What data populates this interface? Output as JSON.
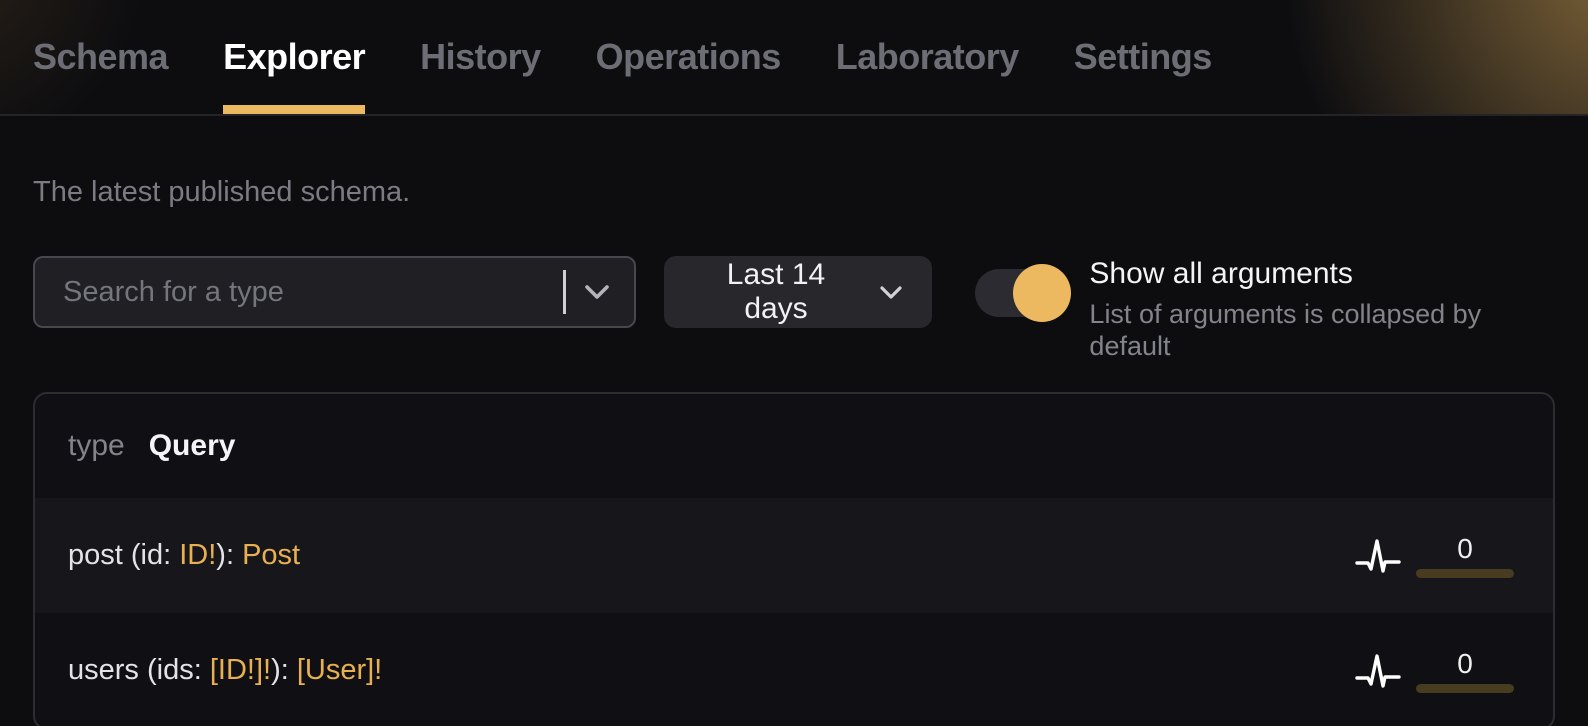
{
  "nav": {
    "active": "Explorer",
    "tabs": [
      {
        "label": "Schema"
      },
      {
        "label": "Explorer"
      },
      {
        "label": "History"
      },
      {
        "label": "Operations"
      },
      {
        "label": "Laboratory"
      },
      {
        "label": "Settings"
      }
    ]
  },
  "page": {
    "description": "The latest published schema."
  },
  "controls": {
    "search": {
      "placeholder": "Search for a type",
      "value": ""
    },
    "period": {
      "label": "Last 14 days"
    },
    "arguments_toggle": {
      "state": "on",
      "title": "Show all arguments",
      "subtitle": "List of arguments is collapsed by default"
    }
  },
  "type_card": {
    "keyword": "type",
    "name": "Query",
    "fields": [
      {
        "segments": [
          {
            "text": "post (id: ",
            "kind": "plain"
          },
          {
            "text": "ID!",
            "kind": "type"
          },
          {
            "text": "): ",
            "kind": "plain"
          },
          {
            "text": "Post",
            "kind": "type"
          }
        ],
        "usage_count": "0"
      },
      {
        "segments": [
          {
            "text": "users (ids: ",
            "kind": "plain"
          },
          {
            "text": "[ID!]!",
            "kind": "type"
          },
          {
            "text": "): ",
            "kind": "plain"
          },
          {
            "text": "[User]!",
            "kind": "type"
          }
        ],
        "usage_count": "0"
      }
    ]
  },
  "icons": {
    "search_dropdown": "chevron-down-icon",
    "period_dropdown": "chevron-down-icon",
    "field_usage": "activity-pulse-icon"
  },
  "colors": {
    "accent": "#ecb860",
    "gold_text": "#e8b050",
    "bar": "#473c20",
    "page_bg": "#0d0d10"
  }
}
